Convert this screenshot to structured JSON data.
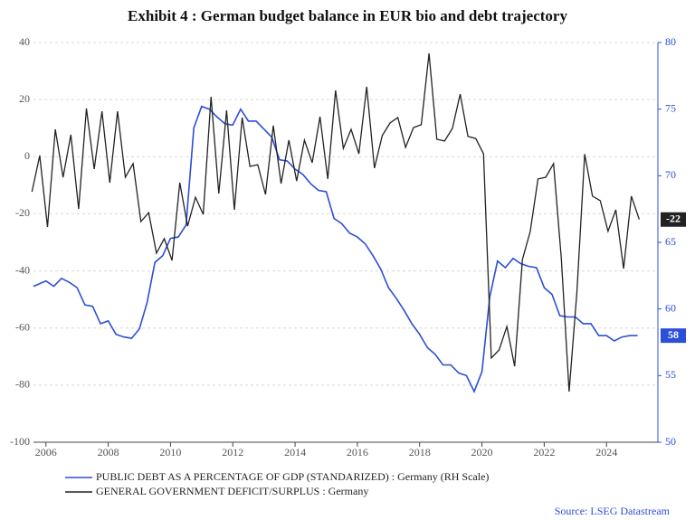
{
  "chart_data": {
    "type": "line",
    "title": "Exhibit 4 : German budget balance in EUR bio and debt trajectory",
    "source": "Source: LSEG Datastream",
    "xlim": [
      2005.6,
      2025.65
    ],
    "xticks": [
      2006,
      2008,
      2010,
      2012,
      2014,
      2016,
      2018,
      2020,
      2022,
      2024
    ],
    "ylim": [
      -100,
      40
    ],
    "yticks": [
      -100,
      -80,
      -60,
      -40,
      -20,
      0,
      20,
      40
    ],
    "y2lim": [
      50,
      80
    ],
    "y2ticks": [
      50,
      55,
      60,
      65,
      70,
      75,
      80
    ],
    "grid": true,
    "series": [
      {
        "name": "PUBLIC DEBT AS A PERCENTAGE OF GDP (STANDARIZED) : Germany (RH Scale)",
        "color": "#2b4fd6",
        "axis": "y2",
        "x": [
          2005.6,
          2006,
          2006.25,
          2006.5,
          2006.75,
          2007,
          2007.25,
          2007.5,
          2007.75,
          2008,
          2008.25,
          2008.5,
          2008.75,
          2009,
          2009.25,
          2009.5,
          2009.75,
          2010,
          2010.25,
          2010.5,
          2010.75,
          2011,
          2011.25,
          2011.5,
          2011.75,
          2012,
          2012.25,
          2012.5,
          2012.75,
          2013,
          2013.25,
          2013.5,
          2013.75,
          2014,
          2014.25,
          2014.5,
          2014.75,
          2015,
          2015.25,
          2015.5,
          2015.75,
          2016,
          2016.25,
          2016.5,
          2016.75,
          2017,
          2017.25,
          2017.5,
          2017.75,
          2018,
          2018.25,
          2018.5,
          2018.75,
          2019,
          2019.25,
          2019.5,
          2019.75,
          2020,
          2020.25,
          2020.5,
          2020.75,
          2021,
          2021.25,
          2021.5,
          2021.75,
          2022,
          2022.25,
          2022.5,
          2022.75,
          2023,
          2023.25,
          2023.5,
          2023.75,
          2024,
          2024.25,
          2024.5,
          2024.75,
          2025
        ],
        "values": [
          61.7,
          62.1,
          61.7,
          62.3,
          62.0,
          61.6,
          60.3,
          60.2,
          58.9,
          59.1,
          58.1,
          57.9,
          57.8,
          58.5,
          60.5,
          63.5,
          64.0,
          65.3,
          65.4,
          66.3,
          73.6,
          75.2,
          75.0,
          74.4,
          73.9,
          73.8,
          75.0,
          74.1,
          74.1,
          73.5,
          72.9,
          71.2,
          71.1,
          70.5,
          70.1,
          69.4,
          68.9,
          68.8,
          66.8,
          66.4,
          65.7,
          65.4,
          64.9,
          64.0,
          63.0,
          61.6,
          60.8,
          59.9,
          58.9,
          58.1,
          57.1,
          56.6,
          55.8,
          55.8,
          55.2,
          55.0,
          53.8,
          55.3,
          60.9,
          63.6,
          63.1,
          63.8,
          63.4,
          63.2,
          63.1,
          61.6,
          61.1,
          59.5,
          59.4,
          59.4,
          58.9,
          58.9,
          58.0,
          58.0,
          57.6,
          57.9,
          58.0,
          58
        ]
      },
      {
        "name": "GENERAL GOVERNMENT DEFICIT/SURPLUS : Germany",
        "color": "#222222",
        "x": [
          2005.55,
          2005.8,
          2006.05,
          2006.3,
          2006.55,
          2006.8,
          2007.05,
          2007.3,
          2007.55,
          2007.8,
          2008.05,
          2008.3,
          2008.55,
          2008.8,
          2009.05,
          2009.3,
          2009.55,
          2009.8,
          2010.05,
          2010.3,
          2010.55,
          2010.8,
          2011.05,
          2011.3,
          2011.55,
          2011.8,
          2012.05,
          2012.3,
          2012.55,
          2012.8,
          2013.05,
          2013.3,
          2013.55,
          2013.8,
          2014.05,
          2014.3,
          2014.55,
          2014.8,
          2015.05,
          2015.3,
          2015.55,
          2015.8,
          2016.05,
          2016.3,
          2016.55,
          2016.8,
          2017.05,
          2017.3,
          2017.55,
          2017.8,
          2018.05,
          2018.3,
          2018.55,
          2018.8,
          2019.05,
          2019.3,
          2019.55,
          2019.8,
          2020.05,
          2020.3,
          2020.55,
          2020.8,
          2021.05,
          2021.3,
          2021.55,
          2021.8,
          2022.05,
          2022.3,
          2022.55,
          2022.8,
          2023.05,
          2023.3,
          2023.55,
          2023.8,
          2024.05,
          2024.3,
          2024.55,
          2024.8,
          2025.05
        ],
        "values": [
          -12.3,
          0.4,
          -24.6,
          9.6,
          -7.2,
          7.7,
          -18.3,
          16.9,
          -4.3,
          15.9,
          -9.1,
          15.9,
          -7.2,
          -2.4,
          -22.7,
          -19.6,
          -33.8,
          -28.7,
          -36.3,
          -9.1,
          -24.3,
          -14.2,
          -20.2,
          21.0,
          -12.9,
          16.2,
          -18.6,
          13.7,
          -3.4,
          -2.8,
          -13.2,
          10.9,
          -9.4,
          5.8,
          -8.5,
          5.8,
          -2.1,
          14.0,
          -7.8,
          23.2,
          2.9,
          9.6,
          1.0,
          24.5,
          -4.0,
          7.4,
          11.8,
          13.7,
          3.3,
          10.2,
          11.2,
          36.2,
          6.1,
          5.5,
          9.9,
          21.9,
          7.1,
          6.4,
          1.0,
          -70.5,
          -67.7,
          -59.5,
          -73.4,
          -36.0,
          -26.2,
          -7.8,
          -7.2,
          -2.4,
          -35.7,
          -82.3,
          -47.4,
          0.9,
          -13.8,
          -15.4,
          -26.1,
          -18.6,
          -39.2,
          -13.8,
          -22
        ]
      }
    ]
  }
}
